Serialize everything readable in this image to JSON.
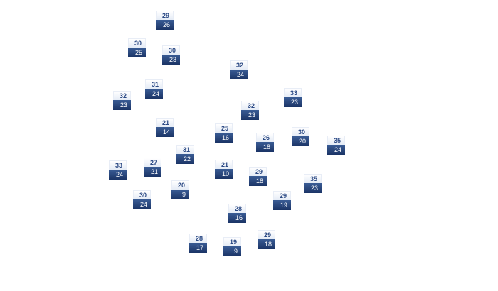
{
  "markers": [
    {
      "high": "29",
      "low": "26"
    },
    {
      "high": "30",
      "low": "25"
    },
    {
      "high": "30",
      "low": "23"
    },
    {
      "high": "32",
      "low": "24"
    },
    {
      "high": "31",
      "low": "24"
    },
    {
      "high": "32",
      "low": "23"
    },
    {
      "high": "33",
      "low": "23"
    },
    {
      "high": "32",
      "low": "23"
    },
    {
      "high": "21",
      "low": "14"
    },
    {
      "high": "25",
      "low": "16"
    },
    {
      "high": "26",
      "low": "18"
    },
    {
      "high": "30",
      "low": "20"
    },
    {
      "high": "35",
      "low": "24"
    },
    {
      "high": "31",
      "low": "22"
    },
    {
      "high": "27",
      "low": "21"
    },
    {
      "high": "33",
      "low": "24"
    },
    {
      "high": "21",
      "low": "10"
    },
    {
      "high": "29",
      "low": "18"
    },
    {
      "high": "35",
      "low": "23"
    },
    {
      "high": "20",
      "low": "9"
    },
    {
      "high": "30",
      "low": "24"
    },
    {
      "high": "29",
      "low": "19"
    },
    {
      "high": "28",
      "low": "16"
    },
    {
      "high": "29",
      "low": "18"
    },
    {
      "high": "28",
      "low": "17"
    },
    {
      "high": "19",
      "low": "9"
    }
  ],
  "colors": {
    "high_text": "#2c4a85",
    "low_bg": "#1b3466",
    "low_text": "#ffffff"
  }
}
